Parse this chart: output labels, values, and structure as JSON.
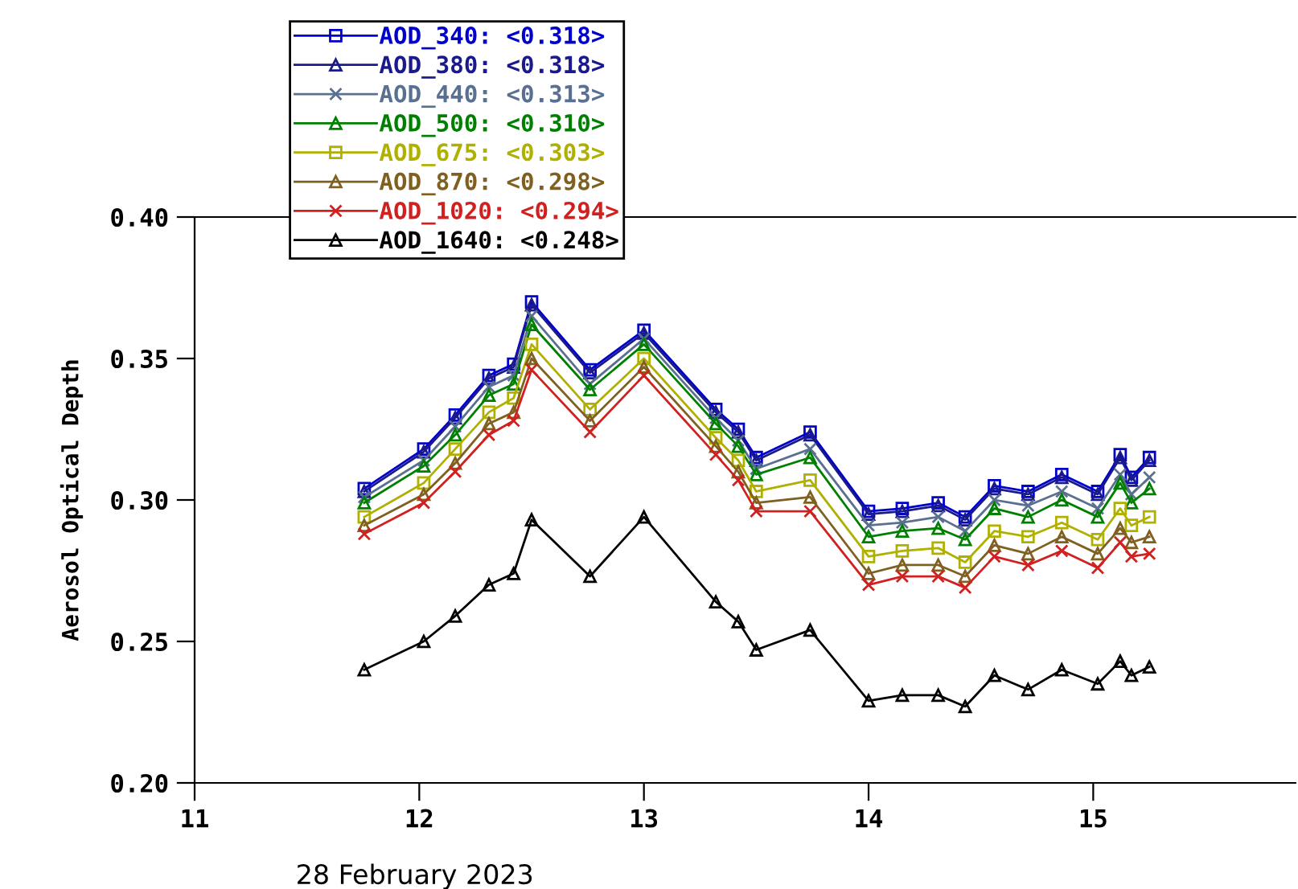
{
  "chart_data": {
    "type": "line",
    "xlabel": "28 February 2023",
    "ylabel": "Aerosol Optical Depth",
    "x": [
      11.755,
      12.02,
      12.16,
      12.31,
      12.42,
      12.5,
      12.76,
      13.0,
      13.32,
      13.42,
      13.5,
      13.74,
      14.0,
      14.15,
      14.31,
      14.43,
      14.56,
      14.71,
      14.86,
      15.02,
      15.12,
      15.17,
      15.25
    ],
    "series": [
      {
        "name": "AOD_340: <0.318>",
        "color": "#0000cc",
        "marker": "square",
        "values": [
          0.304,
          0.318,
          0.33,
          0.344,
          0.348,
          0.37,
          0.346,
          0.36,
          0.332,
          0.325,
          0.315,
          0.324,
          0.296,
          0.297,
          0.299,
          0.294,
          0.305,
          0.303,
          0.309,
          0.303,
          0.316,
          0.308,
          0.315
        ]
      },
      {
        "name": "AOD_380: <0.318>",
        "color": "#1a1a8c",
        "marker": "triangle",
        "values": [
          0.303,
          0.317,
          0.329,
          0.343,
          0.347,
          0.369,
          0.345,
          0.359,
          0.331,
          0.324,
          0.314,
          0.323,
          0.295,
          0.296,
          0.298,
          0.293,
          0.304,
          0.302,
          0.308,
          0.302,
          0.315,
          0.307,
          0.314
        ]
      },
      {
        "name": "AOD_440: <0.313>",
        "color": "#5a7090",
        "marker": "cross",
        "values": [
          0.301,
          0.314,
          0.326,
          0.34,
          0.344,
          0.365,
          0.341,
          0.357,
          0.329,
          0.321,
          0.311,
          0.318,
          0.291,
          0.292,
          0.294,
          0.289,
          0.3,
          0.298,
          0.303,
          0.297,
          0.309,
          0.302,
          0.308
        ]
      },
      {
        "name": "AOD_500: <0.310>",
        "color": "#008000",
        "marker": "triangle",
        "values": [
          0.299,
          0.312,
          0.323,
          0.337,
          0.341,
          0.362,
          0.339,
          0.355,
          0.327,
          0.319,
          0.309,
          0.315,
          0.287,
          0.289,
          0.29,
          0.286,
          0.297,
          0.294,
          0.3,
          0.294,
          0.306,
          0.299,
          0.304
        ]
      },
      {
        "name": "AOD_675: <0.303>",
        "color": "#b0b000",
        "marker": "square",
        "values": [
          0.294,
          0.306,
          0.318,
          0.331,
          0.336,
          0.355,
          0.332,
          0.35,
          0.322,
          0.314,
          0.303,
          0.307,
          0.28,
          0.282,
          0.283,
          0.278,
          0.289,
          0.287,
          0.292,
          0.286,
          0.297,
          0.291,
          0.294
        ]
      },
      {
        "name": "AOD_870: <0.298>",
        "color": "#806020",
        "marker": "triangle",
        "values": [
          0.291,
          0.302,
          0.313,
          0.327,
          0.331,
          0.35,
          0.328,
          0.347,
          0.319,
          0.31,
          0.299,
          0.301,
          0.274,
          0.277,
          0.277,
          0.273,
          0.284,
          0.281,
          0.287,
          0.281,
          0.29,
          0.285,
          0.287
        ]
      },
      {
        "name": "AOD_1020: <0.294>",
        "color": "#d02020",
        "marker": "cross",
        "values": [
          0.288,
          0.299,
          0.31,
          0.323,
          0.328,
          0.346,
          0.324,
          0.344,
          0.316,
          0.307,
          0.296,
          0.296,
          0.27,
          0.273,
          0.273,
          0.269,
          0.28,
          0.277,
          0.282,
          0.276,
          0.285,
          0.28,
          0.281
        ]
      },
      {
        "name": "AOD_1640: <0.248>",
        "color": "#000000",
        "marker": "triangle",
        "values": [
          0.24,
          0.25,
          0.259,
          0.27,
          0.274,
          0.293,
          0.273,
          0.294,
          0.264,
          0.257,
          0.247,
          0.254,
          0.229,
          0.231,
          0.231,
          0.227,
          0.238,
          0.233,
          0.24,
          0.235,
          0.243,
          0.238,
          0.241
        ]
      }
    ],
    "xlim": [
      11,
      15.9
    ],
    "xticks": [
      11,
      12,
      13,
      14,
      15
    ],
    "ylim": [
      0.2,
      0.4
    ],
    "yticks": [
      {
        "value": 0.2,
        "label": "0.20"
      },
      {
        "value": 0.25,
        "label": "0.25"
      },
      {
        "value": 0.3,
        "label": "0.30"
      },
      {
        "value": 0.35,
        "label": "0.35"
      },
      {
        "value": 0.4,
        "label": "0.40"
      }
    ],
    "grid": false,
    "legend": "top left",
    "line_style": "solid"
  }
}
